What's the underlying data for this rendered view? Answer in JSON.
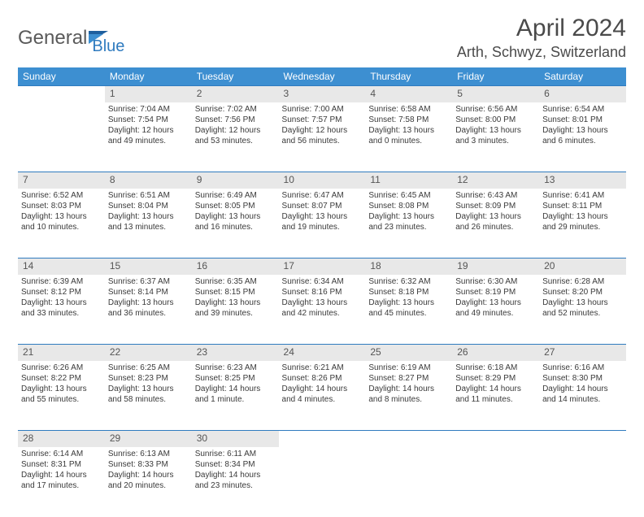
{
  "logo": {
    "part1": "General",
    "part2": "Blue"
  },
  "title": "April 2024",
  "location": "Arth, Schwyz, Switzerland",
  "colors": {
    "header_bg": "#3d8fd1",
    "header_fg": "#ffffff",
    "daynum_bg": "#e8e8e8",
    "daynum_border": "#2f7bbf",
    "text": "#3a3a3a",
    "logo_gray": "#5a5a5a",
    "logo_blue": "#2f7bbf"
  },
  "weekdays": [
    "Sunday",
    "Monday",
    "Tuesday",
    "Wednesday",
    "Thursday",
    "Friday",
    "Saturday"
  ],
  "weeks": [
    [
      null,
      {
        "n": "1",
        "sr": "Sunrise: 7:04 AM",
        "ss": "Sunset: 7:54 PM",
        "d1": "Daylight: 12 hours",
        "d2": "and 49 minutes."
      },
      {
        "n": "2",
        "sr": "Sunrise: 7:02 AM",
        "ss": "Sunset: 7:56 PM",
        "d1": "Daylight: 12 hours",
        "d2": "and 53 minutes."
      },
      {
        "n": "3",
        "sr": "Sunrise: 7:00 AM",
        "ss": "Sunset: 7:57 PM",
        "d1": "Daylight: 12 hours",
        "d2": "and 56 minutes."
      },
      {
        "n": "4",
        "sr": "Sunrise: 6:58 AM",
        "ss": "Sunset: 7:58 PM",
        "d1": "Daylight: 13 hours",
        "d2": "and 0 minutes."
      },
      {
        "n": "5",
        "sr": "Sunrise: 6:56 AM",
        "ss": "Sunset: 8:00 PM",
        "d1": "Daylight: 13 hours",
        "d2": "and 3 minutes."
      },
      {
        "n": "6",
        "sr": "Sunrise: 6:54 AM",
        "ss": "Sunset: 8:01 PM",
        "d1": "Daylight: 13 hours",
        "d2": "and 6 minutes."
      }
    ],
    [
      {
        "n": "7",
        "sr": "Sunrise: 6:52 AM",
        "ss": "Sunset: 8:03 PM",
        "d1": "Daylight: 13 hours",
        "d2": "and 10 minutes."
      },
      {
        "n": "8",
        "sr": "Sunrise: 6:51 AM",
        "ss": "Sunset: 8:04 PM",
        "d1": "Daylight: 13 hours",
        "d2": "and 13 minutes."
      },
      {
        "n": "9",
        "sr": "Sunrise: 6:49 AM",
        "ss": "Sunset: 8:05 PM",
        "d1": "Daylight: 13 hours",
        "d2": "and 16 minutes."
      },
      {
        "n": "10",
        "sr": "Sunrise: 6:47 AM",
        "ss": "Sunset: 8:07 PM",
        "d1": "Daylight: 13 hours",
        "d2": "and 19 minutes."
      },
      {
        "n": "11",
        "sr": "Sunrise: 6:45 AM",
        "ss": "Sunset: 8:08 PM",
        "d1": "Daylight: 13 hours",
        "d2": "and 23 minutes."
      },
      {
        "n": "12",
        "sr": "Sunrise: 6:43 AM",
        "ss": "Sunset: 8:09 PM",
        "d1": "Daylight: 13 hours",
        "d2": "and 26 minutes."
      },
      {
        "n": "13",
        "sr": "Sunrise: 6:41 AM",
        "ss": "Sunset: 8:11 PM",
        "d1": "Daylight: 13 hours",
        "d2": "and 29 minutes."
      }
    ],
    [
      {
        "n": "14",
        "sr": "Sunrise: 6:39 AM",
        "ss": "Sunset: 8:12 PM",
        "d1": "Daylight: 13 hours",
        "d2": "and 33 minutes."
      },
      {
        "n": "15",
        "sr": "Sunrise: 6:37 AM",
        "ss": "Sunset: 8:14 PM",
        "d1": "Daylight: 13 hours",
        "d2": "and 36 minutes."
      },
      {
        "n": "16",
        "sr": "Sunrise: 6:35 AM",
        "ss": "Sunset: 8:15 PM",
        "d1": "Daylight: 13 hours",
        "d2": "and 39 minutes."
      },
      {
        "n": "17",
        "sr": "Sunrise: 6:34 AM",
        "ss": "Sunset: 8:16 PM",
        "d1": "Daylight: 13 hours",
        "d2": "and 42 minutes."
      },
      {
        "n": "18",
        "sr": "Sunrise: 6:32 AM",
        "ss": "Sunset: 8:18 PM",
        "d1": "Daylight: 13 hours",
        "d2": "and 45 minutes."
      },
      {
        "n": "19",
        "sr": "Sunrise: 6:30 AM",
        "ss": "Sunset: 8:19 PM",
        "d1": "Daylight: 13 hours",
        "d2": "and 49 minutes."
      },
      {
        "n": "20",
        "sr": "Sunrise: 6:28 AM",
        "ss": "Sunset: 8:20 PM",
        "d1": "Daylight: 13 hours",
        "d2": "and 52 minutes."
      }
    ],
    [
      {
        "n": "21",
        "sr": "Sunrise: 6:26 AM",
        "ss": "Sunset: 8:22 PM",
        "d1": "Daylight: 13 hours",
        "d2": "and 55 minutes."
      },
      {
        "n": "22",
        "sr": "Sunrise: 6:25 AM",
        "ss": "Sunset: 8:23 PM",
        "d1": "Daylight: 13 hours",
        "d2": "and 58 minutes."
      },
      {
        "n": "23",
        "sr": "Sunrise: 6:23 AM",
        "ss": "Sunset: 8:25 PM",
        "d1": "Daylight: 14 hours",
        "d2": "and 1 minute."
      },
      {
        "n": "24",
        "sr": "Sunrise: 6:21 AM",
        "ss": "Sunset: 8:26 PM",
        "d1": "Daylight: 14 hours",
        "d2": "and 4 minutes."
      },
      {
        "n": "25",
        "sr": "Sunrise: 6:19 AM",
        "ss": "Sunset: 8:27 PM",
        "d1": "Daylight: 14 hours",
        "d2": "and 8 minutes."
      },
      {
        "n": "26",
        "sr": "Sunrise: 6:18 AM",
        "ss": "Sunset: 8:29 PM",
        "d1": "Daylight: 14 hours",
        "d2": "and 11 minutes."
      },
      {
        "n": "27",
        "sr": "Sunrise: 6:16 AM",
        "ss": "Sunset: 8:30 PM",
        "d1": "Daylight: 14 hours",
        "d2": "and 14 minutes."
      }
    ],
    [
      {
        "n": "28",
        "sr": "Sunrise: 6:14 AM",
        "ss": "Sunset: 8:31 PM",
        "d1": "Daylight: 14 hours",
        "d2": "and 17 minutes."
      },
      {
        "n": "29",
        "sr": "Sunrise: 6:13 AM",
        "ss": "Sunset: 8:33 PM",
        "d1": "Daylight: 14 hours",
        "d2": "and 20 minutes."
      },
      {
        "n": "30",
        "sr": "Sunrise: 6:11 AM",
        "ss": "Sunset: 8:34 PM",
        "d1": "Daylight: 14 hours",
        "d2": "and 23 minutes."
      },
      null,
      null,
      null,
      null
    ]
  ]
}
